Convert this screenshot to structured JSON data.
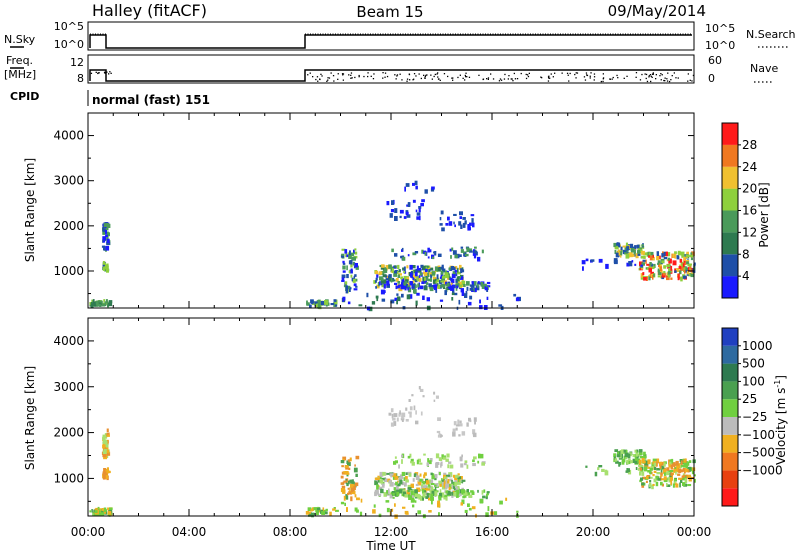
{
  "header": {
    "site": "Halley (fitACF)",
    "beam": "Beam 15",
    "date": "09/May/2014"
  },
  "strips": {
    "nsky_label": "N.Sky",
    "nsky_ticks": [
      "10^5",
      "10^0"
    ],
    "nsearch_label": "N.Search",
    "nsearch_ticks": [
      "10^5",
      "10^0"
    ],
    "freq_label_1": "Freq.",
    "freq_label_2": "[MHz]",
    "freq_ticks": [
      "12",
      "8"
    ],
    "nave_label": "Nave",
    "nave_ticks": [
      "60",
      "0"
    ],
    "cpid_label": "CPID",
    "cpid_value": "normal (fast) 151"
  },
  "time_axis": {
    "label": "Time UT",
    "ticks": [
      "00:00",
      "04:00",
      "08:00",
      "12:00",
      "16:00",
      "20:00",
      "00:00"
    ]
  },
  "chart_data": [
    {
      "type": "heatmap",
      "quantity": "Power",
      "xlabel": "Time UT",
      "ylabel": "Slant Range [km]",
      "xlim": [
        0,
        24
      ],
      "ylim": [
        180,
        4500
      ],
      "yticks": [
        "1000",
        "2000",
        "3000",
        "4000"
      ],
      "colorbar_label": "Power [dB]",
      "colorbar_ticks": [
        "4",
        "8",
        "12",
        "16",
        "20",
        "24",
        "28"
      ],
      "colorbar_colors": [
        "#1a1aff",
        "#1e4fa8",
        "#2e7a50",
        "#4a9a5a",
        "#8ecf3c",
        "#f0c030",
        "#f07820",
        "#ff1a1a"
      ]
    },
    {
      "type": "heatmap",
      "quantity": "Velocity",
      "xlabel": "Time UT",
      "ylabel": "Slant Range [km]",
      "xlim": [
        0,
        24
      ],
      "ylim": [
        180,
        4500
      ],
      "yticks": [
        "1000",
        "2000",
        "3000",
        "4000"
      ],
      "colorbar_label": "Velocity [m s^-1]",
      "colorbar_ticks": [
        "1000",
        "500",
        "100",
        "25",
        "-25",
        "-100",
        "-500",
        "-1000"
      ],
      "colorbar_colors": [
        "#2040c0",
        "#2e6aa0",
        "#2e7a50",
        "#4aa050",
        "#70d040",
        "#bcbcbc",
        "#f0b020",
        "#f07820",
        "#e84010",
        "#ff1a1a"
      ]
    }
  ]
}
